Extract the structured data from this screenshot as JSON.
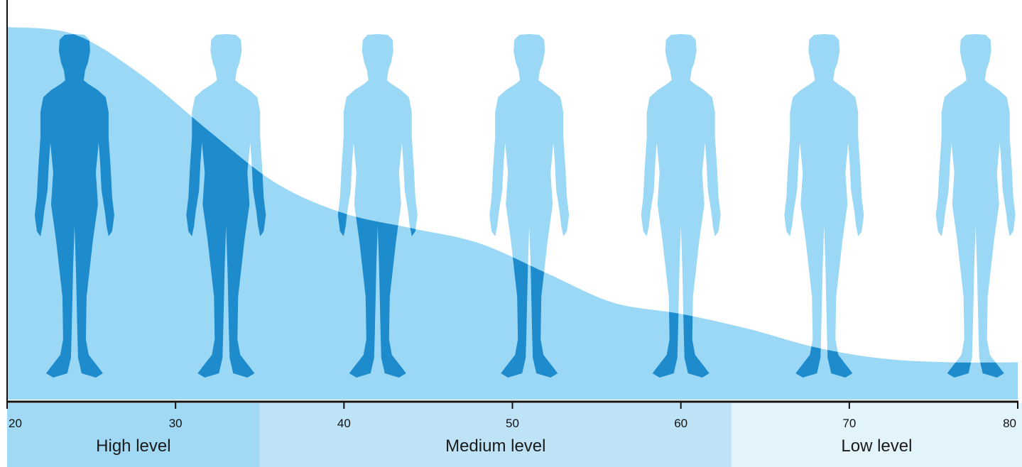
{
  "chart_data": {
    "type": "area",
    "title": "",
    "xlabel": "",
    "ylabel": "",
    "xlim": [
      20,
      80
    ],
    "ylim": [
      0,
      1
    ],
    "x_ticks": [
      "20",
      "30",
      "40",
      "50",
      "60",
      "70",
      "80"
    ],
    "series": [
      {
        "values": [
          {
            "x": 20,
            "y": 1.0
          },
          {
            "x": 24,
            "y": 0.98
          },
          {
            "x": 28,
            "y": 0.87
          },
          {
            "x": 32,
            "y": 0.72
          },
          {
            "x": 36,
            "y": 0.58
          },
          {
            "x": 40,
            "y": 0.5
          },
          {
            "x": 44,
            "y": 0.46
          },
          {
            "x": 48,
            "y": 0.42
          },
          {
            "x": 52,
            "y": 0.34
          },
          {
            "x": 56,
            "y": 0.26
          },
          {
            "x": 60,
            "y": 0.23
          },
          {
            "x": 64,
            "y": 0.19
          },
          {
            "x": 68,
            "y": 0.14
          },
          {
            "x": 72,
            "y": 0.11
          },
          {
            "x": 76,
            "y": 0.1
          },
          {
            "x": 80,
            "y": 0.1
          }
        ]
      }
    ],
    "bands": [
      {
        "label": "High level",
        "from": 20,
        "to": 35
      },
      {
        "label": "Medium level",
        "from": 35,
        "to": 63
      },
      {
        "label": "Low level",
        "from": 63,
        "to": 80
      }
    ],
    "figure_ages": [
      24,
      33,
      42,
      51,
      60,
      68.5,
      77.5
    ],
    "grid": false,
    "legend": "none"
  },
  "colors": {
    "area": "#9bd8f5",
    "figure": "#1e8bcc",
    "axis": "#111111",
    "band_high": "#a1d9f4",
    "band_medium": "#bfe3f6",
    "band_low": "#e3f3fb"
  }
}
